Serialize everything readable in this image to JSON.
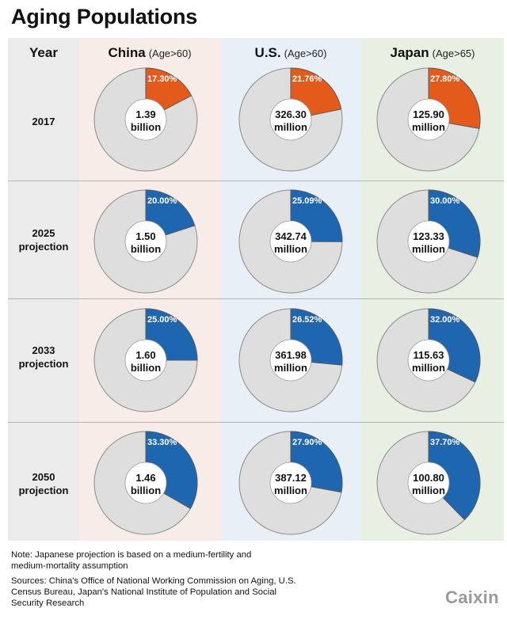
{
  "title": "Aging Populations",
  "header": {
    "year": "Year",
    "columns": [
      {
        "name": "China",
        "sub": "(Age>60)"
      },
      {
        "name": "U.S.",
        "sub": "(Age>60)"
      },
      {
        "name": "Japan",
        "sub": "(Age>65)"
      }
    ]
  },
  "rows": [
    {
      "label_line1": "2017",
      "label_line2": ""
    },
    {
      "label_line1": "2025",
      "label_line2": "projection"
    },
    {
      "label_line1": "2033",
      "label_line2": "projection"
    },
    {
      "label_line1": "2050",
      "label_line2": "projection"
    }
  ],
  "colors": {
    "highlight_2017": "#e35a1a",
    "highlight_projection": "#1f66b0",
    "remainder": "#dedede"
  },
  "chart_data": {
    "type": "pie",
    "subtype": "donut-grid",
    "title": "Aging Populations",
    "categories": [
      "2017",
      "2025 projection",
      "2033 projection",
      "2050 projection"
    ],
    "series": [
      {
        "name": "China",
        "age_group": "Age>60",
        "share_pct": [
          17.3,
          20.0,
          25.0,
          33.3
        ],
        "share_labels": [
          "17.30%",
          "20.00%",
          "25.00%",
          "33.30%"
        ],
        "population": [
          1.39,
          1.5,
          1.6,
          1.46
        ],
        "unit": "billion"
      },
      {
        "name": "U.S.",
        "age_group": "Age>60",
        "share_pct": [
          21.76,
          25.09,
          26.52,
          27.9
        ],
        "share_labels": [
          "21.76%",
          "25.09%",
          "26.52%",
          "27.90%"
        ],
        "population": [
          326.3,
          342.74,
          361.98,
          387.12
        ],
        "unit": "million"
      },
      {
        "name": "Japan",
        "age_group": "Age>65",
        "share_pct": [
          27.8,
          30.0,
          32.0,
          37.7
        ],
        "share_labels": [
          "27.80%",
          "30.00%",
          "32.00%",
          "37.70%"
        ],
        "population": [
          125.9,
          123.33,
          115.63,
          100.8
        ],
        "unit": "million"
      }
    ]
  },
  "notes": {
    "note_line1": "Note: Japanese projection is based on a medium-fertility and",
    "note_line2": "medium-mortality assumption",
    "sources_line1": "Sources: China's Office of National Working Commission on Aging, U.S.",
    "sources_line2": "Census Bureau, Japan's National Institute of Population and Social",
    "sources_line3": "Security Research"
  },
  "logo": "Caixin"
}
